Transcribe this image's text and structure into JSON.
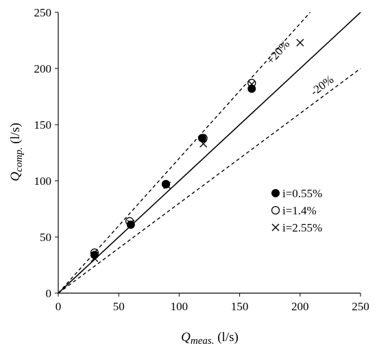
{
  "chart_data": {
    "type": "scatter",
    "title": "",
    "xlabel": {
      "symbol": "Q",
      "subscript": "meas.",
      "unit": "(l/s)"
    },
    "ylabel": {
      "symbol": "Q",
      "subscript": "comp.",
      "unit": "(l/s)"
    },
    "xlim": [
      0,
      250
    ],
    "ylim": [
      0,
      250
    ],
    "x_ticks": [
      "0",
      "50",
      "100",
      "150",
      "200",
      "250"
    ],
    "y_ticks": [
      "0",
      "50",
      "100",
      "150",
      "200",
      "250"
    ],
    "grid": false,
    "legend": "right",
    "reference_lines": [
      {
        "label": "",
        "slope": 1.0,
        "style": "solid"
      },
      {
        "label": "+20%",
        "slope": 1.2,
        "style": "dashed"
      },
      {
        "label": "-20%",
        "slope": 0.8,
        "style": "dashed"
      }
    ],
    "series": [
      {
        "name": "i=0.55%",
        "marker": "filled-circle",
        "points": [
          [
            30,
            34
          ],
          [
            60,
            61
          ],
          [
            89,
            97
          ],
          [
            119,
            138
          ],
          [
            160,
            182
          ]
        ]
      },
      {
        "name": "i=1.4%",
        "marker": "open-circle",
        "points": [
          [
            30,
            36
          ],
          [
            59,
            64
          ],
          [
            89,
            97
          ],
          [
            120,
            138
          ],
          [
            160,
            187
          ]
        ]
      },
      {
        "name": "i=2.55%",
        "marker": "cross",
        "points": [
          [
            30,
            31
          ],
          [
            60,
            62
          ],
          [
            90,
            96
          ],
          [
            120,
            133
          ],
          [
            160,
            186
          ],
          [
            200,
            223
          ]
        ]
      }
    ]
  }
}
